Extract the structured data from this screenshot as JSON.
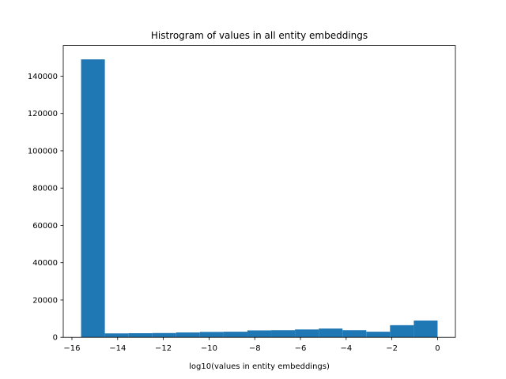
{
  "chart_data": {
    "type": "histogram",
    "title": "Histrogram of values in all entity embeddings",
    "x_label": "log10(values in entity embeddings)",
    "bins": [
      -15.6,
      -14.56,
      -13.52,
      -12.48,
      -11.44,
      -10.4,
      -9.36,
      -8.32,
      -7.28,
      -6.24,
      -5.2,
      -4.16,
      -3.12,
      -2.08,
      -1.04,
      0
    ],
    "values": [
      149000,
      2100,
      2200,
      2300,
      2600,
      2900,
      3000,
      3700,
      3800,
      4200,
      4700,
      3800,
      3000,
      6500,
      9000
    ],
    "color": "#1f77b4",
    "xlim": [
      -16.38,
      0.78
    ],
    "xticks": [
      {
        "value": -16,
        "label": "−16"
      },
      {
        "value": -14,
        "label": "−14"
      },
      {
        "value": -12,
        "label": "−12"
      },
      {
        "value": -10,
        "label": "−10"
      },
      {
        "value": -8,
        "label": "−8"
      },
      {
        "value": -6,
        "label": "−6"
      },
      {
        "value": -4,
        "label": "−4"
      },
      {
        "value": -2,
        "label": "−2"
      },
      0
    ],
    "ylim": [
      0,
      156450
    ],
    "yticks": [
      0,
      20000,
      40000,
      60000,
      80000,
      100000,
      120000,
      140000
    ],
    "grid": false
  }
}
